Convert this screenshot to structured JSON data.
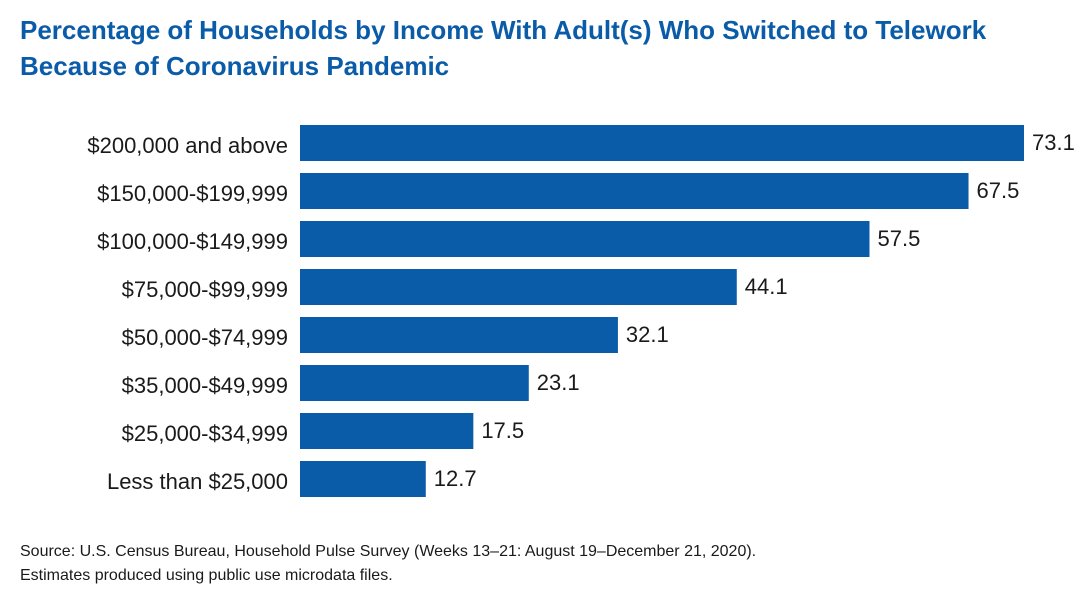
{
  "chart_data": {
    "type": "bar",
    "orientation": "horizontal",
    "title": "Percentage of Households by Income With Adult(s) Who Switched to Telework Because of Coronavirus Pandemic",
    "categories": [
      "$200,000 and above",
      "$150,000-$199,999",
      "$100,000-$149,999",
      "$75,000-$99,999",
      "$50,000-$74,999",
      "$35,000-$49,999",
      "$25,000-$34,999",
      "Less than $25,000"
    ],
    "values": [
      73.1,
      67.5,
      57.5,
      44.1,
      32.1,
      23.1,
      17.5,
      12.7
    ],
    "color": "#0b5ca8",
    "source": "Source: U.S. Census Bureau, Household Pulse Survey (Weeks 13–21: August 19–December 21, 2020).",
    "note": "Estimates produced using public use microdata files."
  }
}
